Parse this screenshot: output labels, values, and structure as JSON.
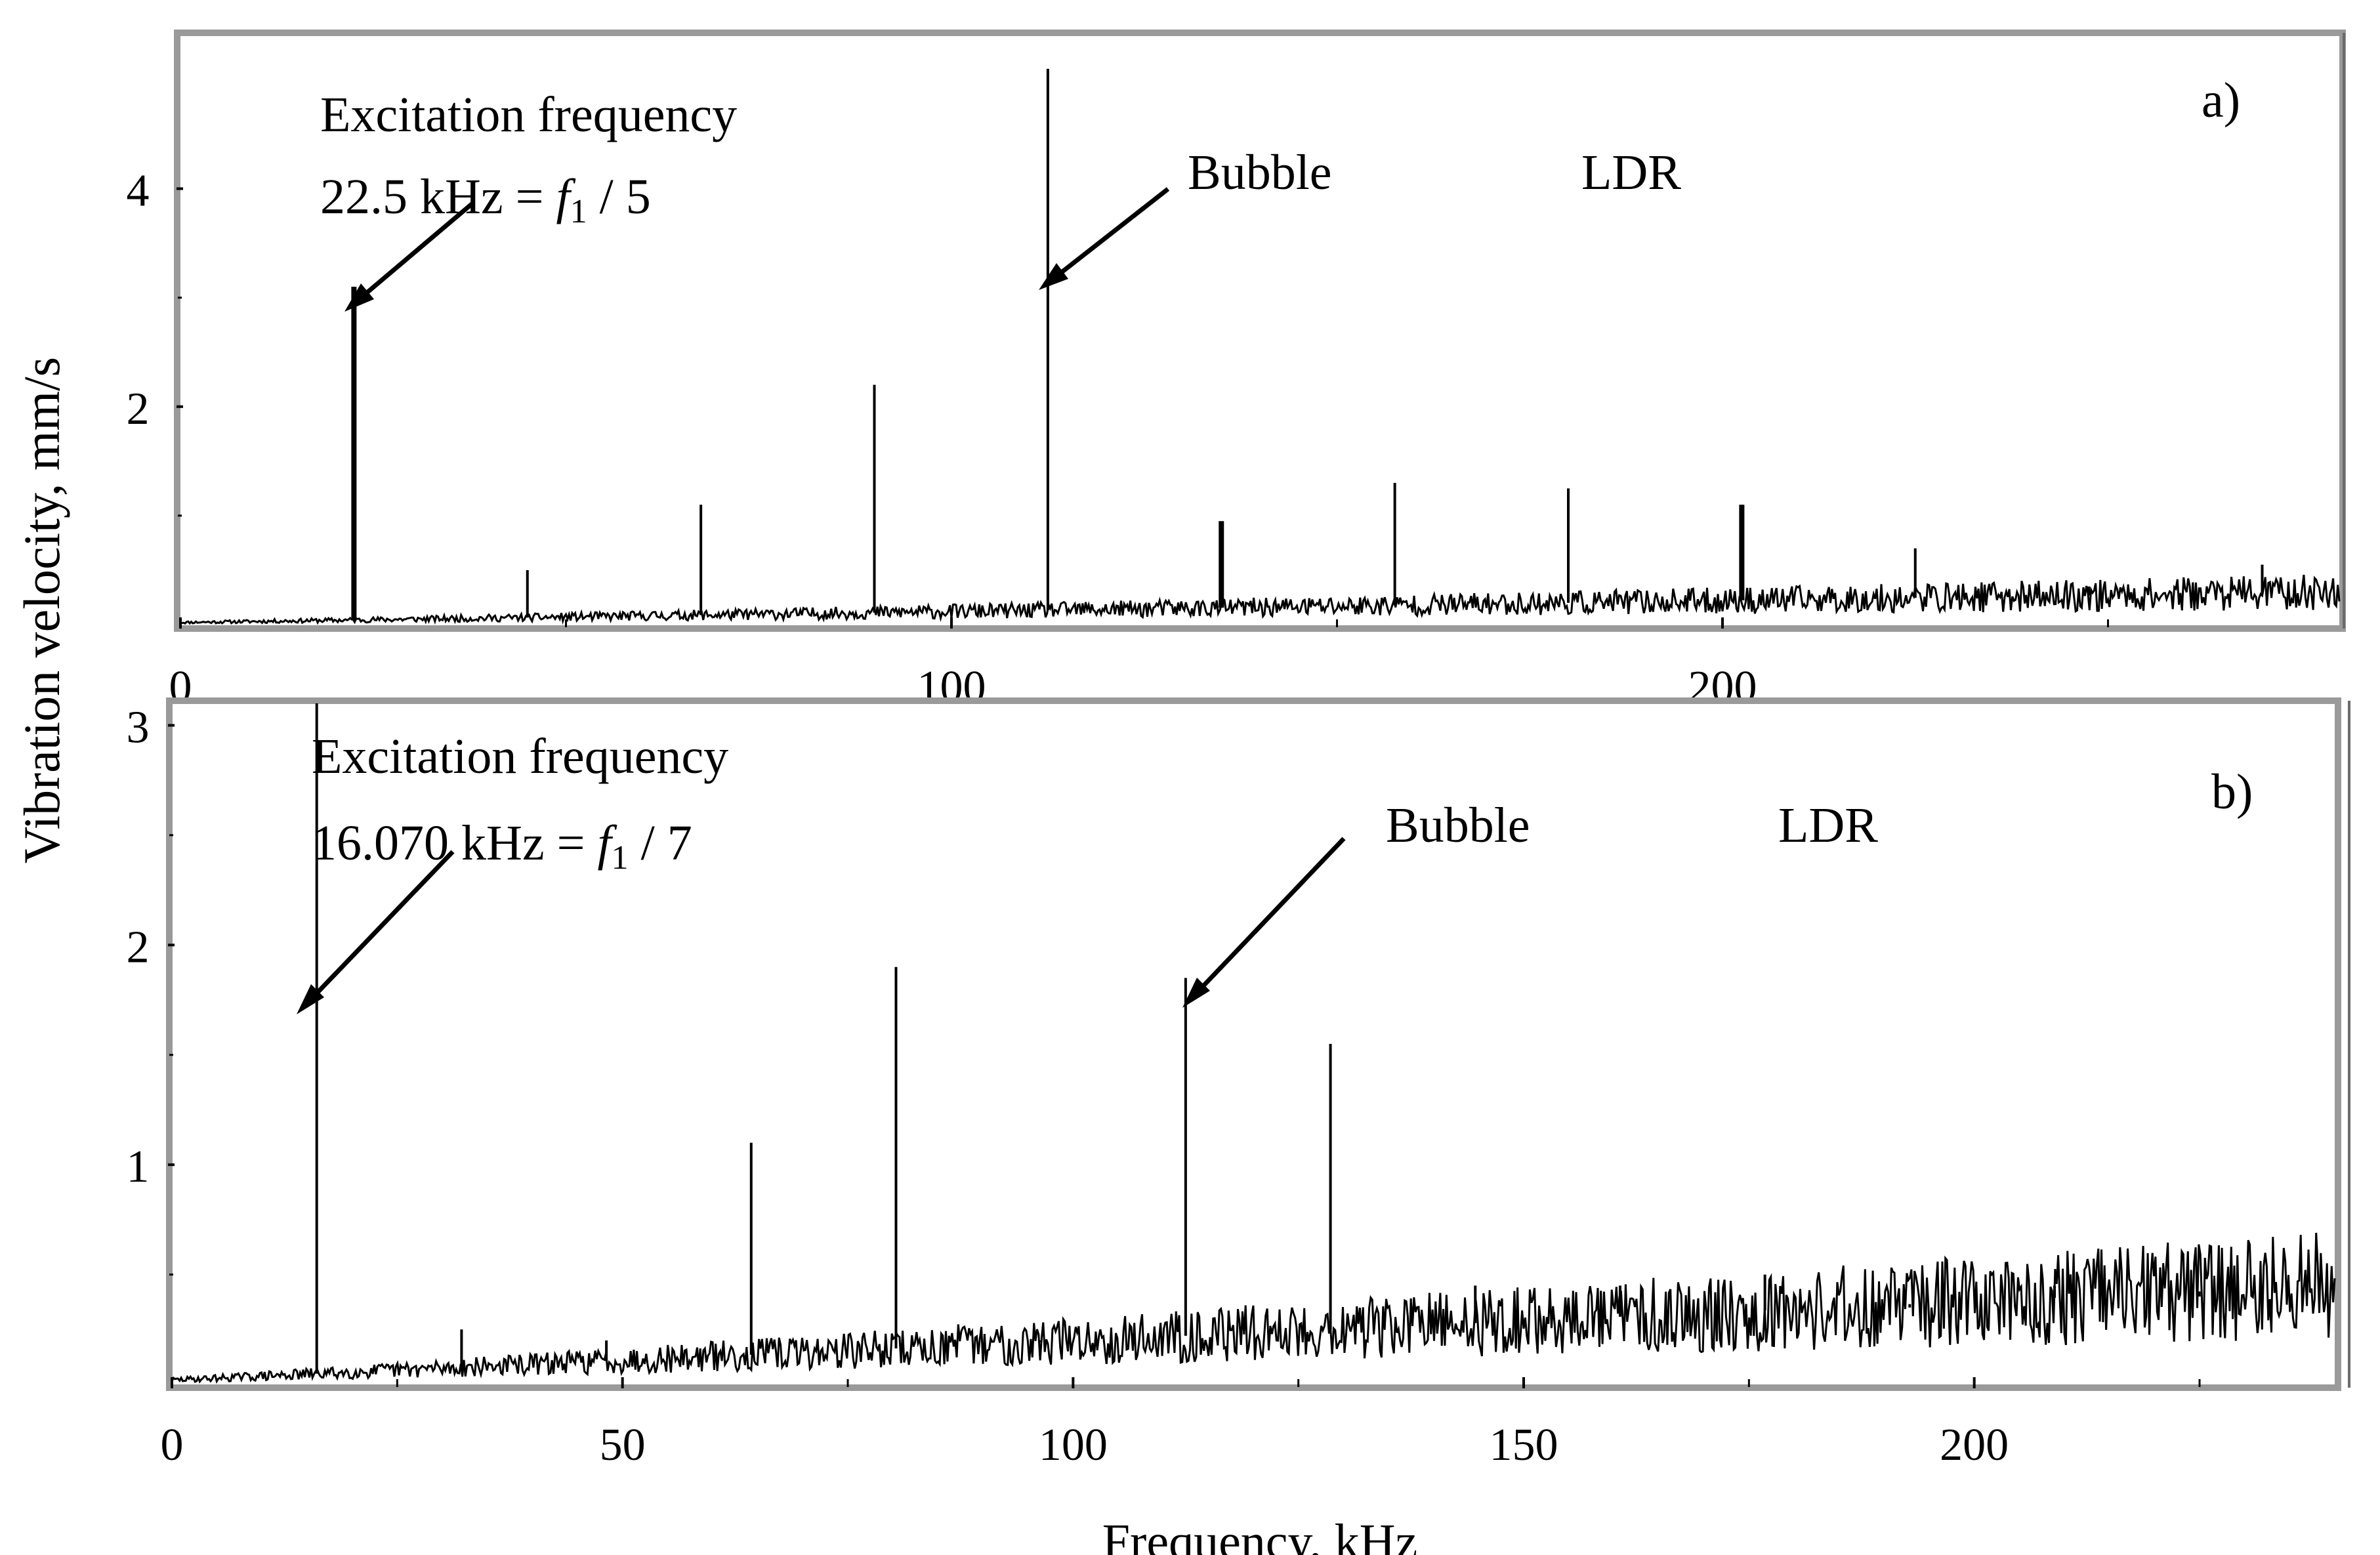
{
  "figure": {
    "ylabel": "Vibration velocity, mm/s"
  },
  "chart_data": [
    {
      "type": "line",
      "panel_label": "a)",
      "xlabel": "",
      "x_ticks": [
        0,
        100,
        200
      ],
      "y_ticks": [
        2,
        4
      ],
      "xlim": [
        0,
        280
      ],
      "ylim": [
        0,
        5.4
      ],
      "annotations": {
        "excitation_title": "Excitation frequency",
        "excitation_value": "22.5 kHz = ",
        "excitation_f": "f",
        "excitation_sub": "1",
        "excitation_tail": " / 5",
        "bubble": "Bubble",
        "ldr": "LDR"
      },
      "noise": {
        "start": 0.02,
        "end": 0.3
      },
      "peaks": [
        {
          "x": 22.5,
          "y": 3.1
        },
        {
          "x": 45.0,
          "y": 0.5
        },
        {
          "x": 67.5,
          "y": 1.1
        },
        {
          "x": 90.0,
          "y": 2.2
        },
        {
          "x": 112.5,
          "y": 5.1
        },
        {
          "x": 135.0,
          "y": 0.95
        },
        {
          "x": 157.5,
          "y": 1.3
        },
        {
          "x": 180.0,
          "y": 1.25
        },
        {
          "x": 202.5,
          "y": 1.1
        },
        {
          "x": 225.0,
          "y": 0.7
        },
        {
          "x": 247.5,
          "y": 0.35
        },
        {
          "x": 270.0,
          "y": 0.55
        }
      ]
    },
    {
      "type": "line",
      "panel_label": "b)",
      "xlabel": "Frequency, kHz",
      "x_ticks": [
        0,
        50,
        100,
        150,
        200
      ],
      "y_ticks": [
        1,
        2,
        3
      ],
      "xlim": [
        0,
        240
      ],
      "ylim": [
        0,
        3.1
      ],
      "annotations": {
        "excitation_title": "Excitation frequency",
        "excitation_value": "16.070 kHz = ",
        "excitation_f": "f",
        "excitation_sub": "1",
        "excitation_tail": " / 7",
        "bubble": "Bubble",
        "ldr": "LDR"
      },
      "noise": {
        "start": 0.02,
        "end": 0.45
      },
      "peaks": [
        {
          "x": 16.07,
          "y": 3.1
        },
        {
          "x": 32.14,
          "y": 0.25
        },
        {
          "x": 48.21,
          "y": 0.2
        },
        {
          "x": 64.28,
          "y": 1.1
        },
        {
          "x": 80.35,
          "y": 1.9
        },
        {
          "x": 96.42,
          "y": 0.2
        },
        {
          "x": 112.49,
          "y": 1.85
        },
        {
          "x": 128.56,
          "y": 1.55
        },
        {
          "x": 144.63,
          "y": 0.45
        },
        {
          "x": 160.7,
          "y": 0.45
        },
        {
          "x": 176.77,
          "y": 0.5
        },
        {
          "x": 192.84,
          "y": 0.35
        },
        {
          "x": 208.91,
          "y": 0.45
        },
        {
          "x": 224.98,
          "y": 0.4
        }
      ]
    }
  ]
}
